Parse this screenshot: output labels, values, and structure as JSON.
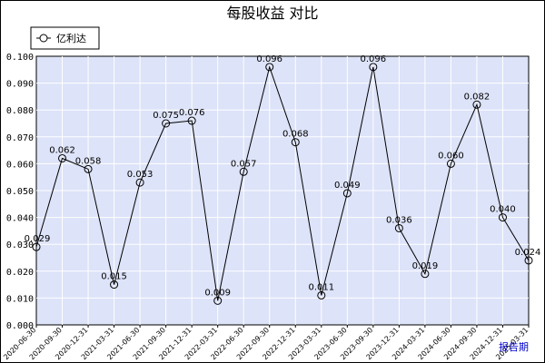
{
  "chart_data": {
    "type": "line",
    "title": "每股收益  对比",
    "legend_position": "top-left",
    "grid": true,
    "ylim": [
      0.0,
      0.1
    ],
    "y_ticks": [
      "0.000",
      "0.010",
      "0.020",
      "0.030",
      "0.040",
      "0.050",
      "0.060",
      "0.070",
      "0.080",
      "0.090",
      "0.100"
    ],
    "x_unit_label": "报告期",
    "categories": [
      "2020-06-30",
      "2020-09-30",
      "2020-12-31",
      "2021-03-31",
      "2021-06-30",
      "2021-09-30",
      "2021-12-31",
      "2022-03-31",
      "2022-06-30",
      "2022-09-30",
      "2022-12-31",
      "2023-03-31",
      "2023-06-30",
      "2023-09-30",
      "2023-12-31",
      "2024-03-31",
      "2024-06-30",
      "2024-09-30",
      "2024-12-31",
      "2025-03-31"
    ],
    "series": [
      {
        "name": "亿利达",
        "values": [
          0.029,
          0.062,
          0.058,
          0.015,
          0.053,
          0.075,
          0.076,
          0.009,
          0.057,
          0.096,
          0.068,
          0.011,
          0.049,
          0.096,
          0.036,
          0.019,
          0.06,
          0.082,
          0.04,
          0.024
        ],
        "labels": [
          "0.029",
          "0.062",
          "0.058",
          "0.015",
          "0.053",
          "0.075",
          "0.076",
          "0.009",
          "0.057",
          "0.096",
          "0.068",
          "0.011",
          "0.049",
          "0.096",
          "0.036",
          "0.019",
          "0.060",
          "0.082",
          "0.040",
          "0.024"
        ]
      }
    ]
  },
  "colors": {
    "plot_background": "#dde3f8",
    "grid": "#ffffff",
    "line": "#000000",
    "frame": "#000000"
  }
}
